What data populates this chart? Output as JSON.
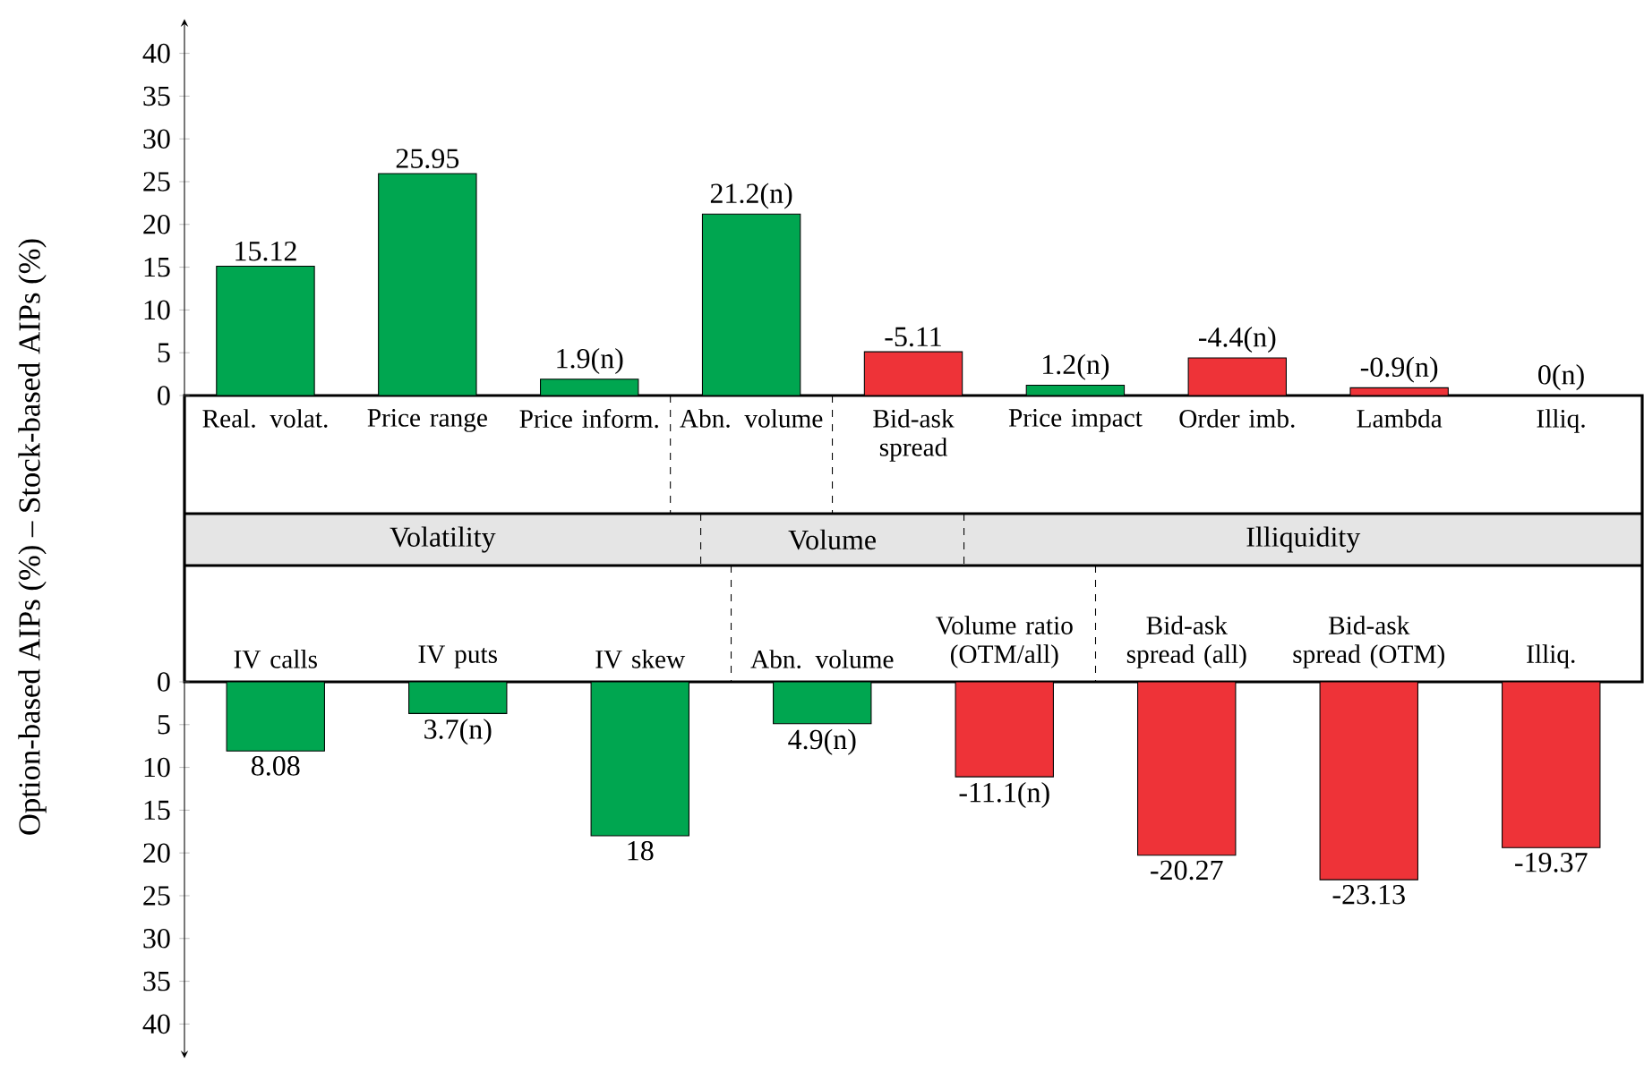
{
  "chart_data": [
    {
      "type": "bar",
      "ylabel": "Option-based AIPs (%) – Stock-based AIPs (%)",
      "categories": [
        "Real. volat.",
        "Price range",
        "Price inform.",
        "Abn. volume",
        "Bid-ask spread",
        "Price impact",
        "Order imb.",
        "Lambda",
        "Illiq."
      ],
      "values": [
        15.12,
        25.95,
        1.9,
        21.2,
        -5.11,
        1.2,
        -4.4,
        -0.9,
        0
      ],
      "base": [
        null,
        null,
        null,
        null,
        5.11,
        null,
        4.4,
        0.9,
        null
      ],
      "colors": [
        "#00a650",
        "#00a650",
        "#00a650",
        "#00a650",
        "#ee3338",
        "#00a650",
        "#ee3338",
        "#ee3338",
        "#00a650"
      ],
      "value_labels": [
        "15.12",
        "25.95",
        "1.9(n)",
        "21.2(n)",
        "-5.11",
        "1.2(n)",
        "-4.4(n)",
        "-0.9(n)",
        "0(n)"
      ],
      "ylim": [
        0,
        44
      ],
      "yticks": [
        0,
        5,
        10,
        15,
        20,
        25,
        30,
        35,
        40
      ],
      "annotations": [
        "Volatility",
        "Volume",
        "Illiquidity"
      ]
    },
    {
      "type": "bar",
      "categories": [
        "IV calls",
        "IV puts",
        "IV skew",
        "Abn. volume",
        "Volume ratio (OTM/all)",
        "Bid-ask spread (all)",
        "Bid-ask spread (OTM)",
        "Illiq."
      ],
      "values": [
        8.08,
        3.7,
        18,
        4.9,
        -11.1,
        -20.27,
        -23.13,
        -19.37
      ],
      "base": [
        null,
        null,
        null,
        null,
        11.1,
        20.27,
        23.13,
        19.37
      ],
      "colors": [
        "#00a650",
        "#00a650",
        "#00a650",
        "#00a650",
        "#ee3338",
        "#ee3338",
        "#ee3338",
        "#ee3338"
      ],
      "value_labels": [
        "8.08",
        "3.7(n)",
        "18",
        "4.9(n)",
        "-11.1(n)",
        "-20.27",
        "-23.13",
        "-19.37"
      ],
      "ylim": [
        44,
        0
      ],
      "yticks": [
        0,
        5,
        10,
        15,
        20,
        25,
        30,
        35,
        40
      ]
    }
  ]
}
